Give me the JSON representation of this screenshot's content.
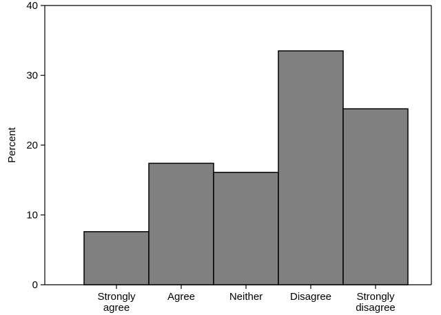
{
  "chart_data": {
    "type": "bar",
    "title": "",
    "xlabel": "",
    "ylabel": "Percent",
    "categories": [
      [
        "Strongly",
        "agree"
      ],
      [
        "Agree"
      ],
      [
        "Neither"
      ],
      [
        "Disagree"
      ],
      [
        "Strongly",
        "disagree"
      ]
    ],
    "values": [
      7.6,
      17.4,
      16.1,
      33.5,
      25.2
    ],
    "ylim": [
      0,
      40
    ],
    "yticks": [
      0,
      10,
      20,
      30,
      40
    ],
    "grid": false,
    "colors": {
      "bar_fill": "#808080",
      "bar_stroke": "#000000",
      "axis": "#000000",
      "background": "#ffffff"
    }
  }
}
